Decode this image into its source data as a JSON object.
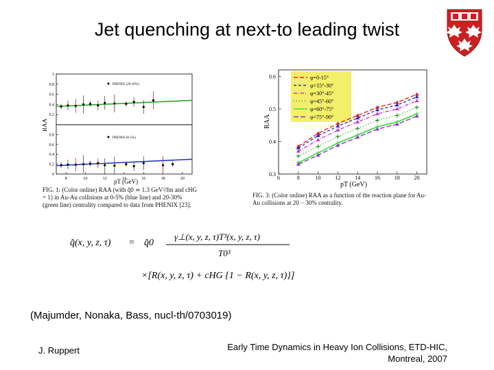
{
  "slide": {
    "title": "Jet quenching at next-to leading twist",
    "citation": "(Majumder, Nonaka, Bass, nucl-th/0703019)",
    "footer_left": "J. Ruppert",
    "footer_right_line1": "Early Time Dynamics in Heavy Ion Collisions, ETD-HIC,",
    "footer_right_line2": "Montreal, 2007"
  },
  "logo": {
    "icon": "mcgill-shield-icon",
    "colors": {
      "red": "#cc1f1f",
      "white": "#ffffff"
    }
  },
  "figure_left": {
    "panel_top_legend": "PHENIX (20-30%)",
    "panel_bottom_legend": "PHENIX (0-5%)",
    "ylabel": "RAA",
    "xlabel": "pT (GeV)",
    "y_ticks_top": [
      "1",
      "0.8",
      "0.6",
      "0.4",
      "0.2"
    ],
    "y_ticks_bottom": [
      "0.8",
      "0.6",
      "0.4",
      "0.2",
      "0"
    ],
    "x_ticks": [
      "8",
      "10",
      "12",
      "14",
      "16",
      "18",
      "20"
    ],
    "caption": "FIG. 1: (Color online) RAA (with q̂0 ≃ 1.3 GeV²/fm and cHG = 1) in Au-Au collisions at 0-5% (blue line) and 20-30% (green line) centrality compared to data from PHENIX [23]."
  },
  "figure_right": {
    "ylabel": "RAA",
    "xlabel": "pT (GeV)",
    "x_ticks": [
      "6",
      "8",
      "10",
      "12",
      "14",
      "16",
      "18",
      "20"
    ],
    "y_ticks": [
      "0.6",
      "0.5",
      "0.4",
      "0.3"
    ],
    "legend": [
      "φ=0-15°",
      "φ=15°-30°",
      "φ=30°-45°",
      "φ=45°-60°",
      "φ=60°-75°",
      "φ=75°-90°"
    ],
    "caption": "FIG. 3: (Color online) RAA as a function of the reaction plane for Au-Au collisions at 20 − 30% centrality."
  },
  "chart_data": [
    {
      "type": "line",
      "title": "",
      "xlabel": "pT (GeV)",
      "ylabel": "RAA",
      "xlim": [
        7,
        21
      ],
      "ylim": [
        0,
        1
      ],
      "x": [
        7,
        21
      ],
      "series": [
        {
          "name": "PHENIX (20-30%)",
          "color": "#2aa52a",
          "line_y": [
            0.36,
            0.48
          ],
          "points_x": [
            7.5,
            8.2,
            9,
            9.8,
            10.5,
            11.3,
            12,
            13,
            14.2,
            15,
            16,
            17
          ],
          "points_y": [
            0.36,
            0.38,
            0.37,
            0.4,
            0.41,
            0.38,
            0.43,
            0.42,
            0.41,
            0.45,
            0.35,
            0.48
          ]
        }
      ]
    },
    {
      "type": "line",
      "title": "",
      "xlabel": "pT (GeV)",
      "ylabel": "RAA",
      "xlim": [
        7,
        21
      ],
      "ylim": [
        0,
        1
      ],
      "x": [
        7,
        21
      ],
      "series": [
        {
          "name": "PHENIX (0-5%)",
          "color": "#2233cc",
          "line_y": [
            0.17,
            0.3
          ],
          "points_x": [
            7.5,
            8.2,
            9,
            9.8,
            10.5,
            11.3,
            12,
            13,
            14.2,
            15,
            16,
            18,
            19
          ],
          "points_y": [
            0.18,
            0.19,
            0.19,
            0.2,
            0.21,
            0.22,
            0.18,
            0.17,
            0.2,
            0.16,
            0.22,
            0.18,
            0.2
          ]
        }
      ]
    },
    {
      "type": "line",
      "title": "",
      "xlabel": "pT (GeV)",
      "ylabel": "RAA",
      "xlim": [
        6,
        21
      ],
      "ylim": [
        0.3,
        0.62
      ],
      "x": [
        8,
        10,
        12,
        14,
        16,
        18,
        20
      ],
      "series": [
        {
          "name": "φ=0-15°",
          "color": "#e02020",
          "values": [
            0.385,
            0.425,
            0.455,
            0.48,
            0.505,
            0.52,
            0.545
          ]
        },
        {
          "name": "φ=15°-30°",
          "color": "#2a2ad0",
          "values": [
            0.38,
            0.418,
            0.447,
            0.472,
            0.497,
            0.512,
            0.537
          ]
        },
        {
          "name": "φ=30°-45°",
          "color": "#cc33cc",
          "values": [
            0.37,
            0.405,
            0.435,
            0.46,
            0.485,
            0.5,
            0.525
          ]
        },
        {
          "name": "φ=45°-60°",
          "color": "#229922",
          "values": [
            0.355,
            0.385,
            0.415,
            0.44,
            0.465,
            0.48,
            0.505
          ]
        },
        {
          "name": "φ=60°-75°",
          "color": "#44dd44",
          "values": [
            0.335,
            0.365,
            0.395,
            0.42,
            0.445,
            0.46,
            0.485
          ]
        },
        {
          "name": "φ=75°-90°",
          "color": "#8833cc",
          "values": [
            0.33,
            0.358,
            0.388,
            0.413,
            0.438,
            0.453,
            0.478
          ]
        }
      ]
    }
  ],
  "formula": {
    "lhs": "q̂(x, y, z, τ)",
    "equals": "=",
    "q0": "q̂0",
    "numerator": "γ⊥(x, y, z, τ)T³(x, y, z, τ)",
    "denominator": "T0³",
    "second_line": "×[R(x, y, z, τ) + cHG {1 − R(x, y, z, τ)}]"
  }
}
